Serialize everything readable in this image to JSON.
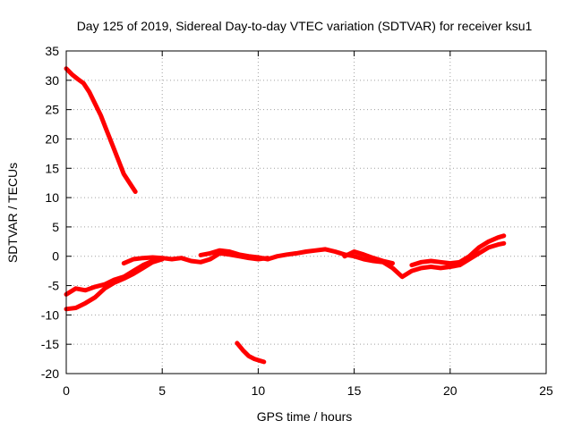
{
  "chart_data": {
    "type": "line",
    "title": "Day 125 of 2019, Sidereal Day-to-day VTEC variation (SDTVAR) for receiver ksu1",
    "xlabel": "GPS time / hours",
    "ylabel": "SDTVAR / TECUs",
    "xlim": [
      0,
      25
    ],
    "ylim": [
      -20,
      35
    ],
    "xticks": [
      "0",
      "5",
      "10",
      "15",
      "20",
      "25"
    ],
    "yticks": [
      "-20",
      "-15",
      "-10",
      "-5",
      "0",
      "5",
      "10",
      "15",
      "20",
      "25",
      "30",
      "35"
    ],
    "grid": true,
    "series_color": "#ff0000",
    "series": [
      {
        "name": "segment-1",
        "x": [
          0.0,
          0.3,
          0.6,
          0.9,
          1.2,
          1.5,
          1.8,
          2.1,
          2.4,
          2.7,
          3.0,
          3.3,
          3.6
        ],
        "y": [
          32,
          31,
          30.2,
          29.5,
          28,
          26,
          24,
          21.5,
          19,
          16.5,
          14,
          12.5,
          11
        ]
      },
      {
        "name": "segment-2",
        "x": [
          8.9,
          9.2,
          9.5,
          9.8,
          10.1,
          10.3
        ],
        "y": [
          -14.8,
          -16,
          -17,
          -17.5,
          -17.8,
          -18
        ]
      },
      {
        "name": "segment-3",
        "x": [
          0.0,
          0.5,
          1.0,
          1.5,
          2.0,
          2.5,
          3.0,
          3.5,
          4.0,
          4.5,
          5.0
        ],
        "y": [
          -9,
          -8.8,
          -8,
          -7,
          -5.5,
          -4.5,
          -3.8,
          -3,
          -2,
          -1,
          -0.5
        ]
      },
      {
        "name": "segment-4",
        "x": [
          0.0,
          0.5,
          1.0,
          1.5,
          2.0,
          2.5,
          3.0,
          3.5,
          4.0,
          4.5,
          5.0
        ],
        "y": [
          -6.5,
          -5.5,
          -5.8,
          -5.2,
          -4.8,
          -4,
          -3.5,
          -2.5,
          -1.5,
          -0.8,
          -0.5
        ]
      },
      {
        "name": "segment-5",
        "x": [
          3.0,
          3.5,
          4.0,
          4.5,
          5.0,
          5.5,
          6.0,
          6.5,
          7.0,
          7.5,
          8.0,
          8.5,
          9.0,
          9.5,
          10.0,
          10.5
        ],
        "y": [
          -1.2,
          -0.5,
          -0.3,
          -0.2,
          -0.3,
          -0.5,
          -0.3,
          -0.8,
          -1,
          -0.5,
          0.5,
          0.3,
          0,
          -0.3,
          -0.5,
          -0.3
        ]
      },
      {
        "name": "segment-6",
        "x": [
          7.0,
          7.5,
          8.0,
          8.5,
          9.0,
          9.5,
          10.0,
          10.5
        ],
        "y": [
          0.2,
          0.5,
          1,
          0.8,
          0.3,
          0,
          -0.2,
          -0.5
        ]
      },
      {
        "name": "segment-7",
        "x": [
          10.5,
          11.0,
          11.5,
          12.0,
          12.5,
          13.0,
          13.5,
          14.0,
          14.5,
          15.0,
          15.5,
          16.0,
          16.5,
          17.0,
          17.5,
          18.0,
          18.5,
          19.0,
          19.5,
          20.0,
          20.5
        ],
        "y": [
          -0.5,
          0,
          0.3,
          0.5,
          0.8,
          1,
          1.2,
          0.8,
          0.3,
          0,
          -0.5,
          -0.8,
          -1,
          -2,
          -3.5,
          -2.5,
          -2,
          -1.8,
          -2,
          -1.8,
          -1.5
        ]
      },
      {
        "name": "segment-8",
        "x": [
          14.5,
          15.0,
          15.5,
          16.0,
          16.5,
          17.0
        ],
        "y": [
          0,
          0.8,
          0.3,
          -0.3,
          -0.8,
          -1.2
        ]
      },
      {
        "name": "segment-9",
        "x": [
          18.0,
          18.5,
          19.0,
          19.5,
          20.0,
          20.5
        ],
        "y": [
          -1.5,
          -1,
          -0.8,
          -1,
          -1.2,
          -1
        ]
      },
      {
        "name": "segment-10",
        "x": [
          20.5,
          21.0,
          21.5,
          22.0,
          22.5,
          22.8
        ],
        "y": [
          -1.5,
          -0.5,
          0.5,
          1.5,
          2,
          2.2
        ]
      },
      {
        "name": "segment-11",
        "x": [
          20.5,
          21.0,
          21.5,
          22.0,
          22.5,
          22.8
        ],
        "y": [
          -1,
          0,
          1.5,
          2.5,
          3.2,
          3.5
        ]
      }
    ]
  }
}
